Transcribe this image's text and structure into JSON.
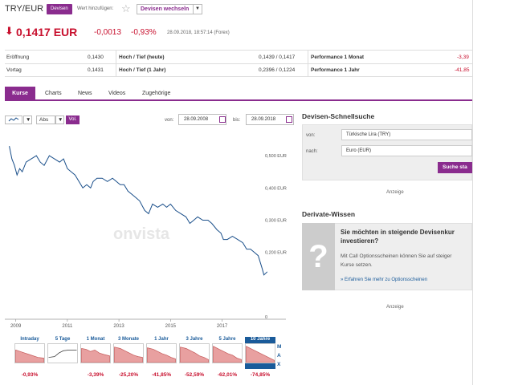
{
  "header": {
    "title": "TRY/EUR",
    "badge": "Devisen",
    "add_label": "Wert hinzufügen:",
    "switch_label": "Devisen wechseln"
  },
  "quote": {
    "price": "0,1417",
    "currency": "EUR",
    "change": "-0,0013",
    "change_pct": "-0,93%",
    "timestamp": "28.09.2018, 18:57:14 (Forex)"
  },
  "stats": {
    "row1": {
      "l1": "Eröffnung",
      "v1": "0,1430",
      "l2": "Hoch / Tief (heute)",
      "v2": "0,1439 / 0,1417",
      "l3": "Performance 1 Monat",
      "v3": "-3,39"
    },
    "row2": {
      "l1": "Vortag",
      "v1": "0,1431",
      "l2": "Hoch / Tief (1 Jahr)",
      "v2": "0,2396 / 0,1224",
      "l3": "Performance 1 Jahr",
      "v3": "-41,85"
    }
  },
  "tabs": [
    "Kurse",
    "Charts",
    "News",
    "Videos",
    "Zugehörige"
  ],
  "toolbar": {
    "scale": "Abs",
    "vol": "Vol.",
    "from_label": "von:",
    "from_date": "28.09.2008",
    "to_label": "bis:",
    "to_date": "28.09.2018"
  },
  "chart_data": {
    "type": "line",
    "watermark": "onvista",
    "x_ticks": [
      "2009",
      "2011",
      "2013",
      "2015",
      "2017"
    ],
    "y_ticks": [
      "0,500 EUR",
      "0,400 EUR",
      "0,300 EUR",
      "0,200 EUR",
      "0"
    ],
    "ylim": [
      0,
      0.56
    ],
    "series": [
      {
        "values": [
          [
            2008.75,
            0.53
          ],
          [
            2008.85,
            0.49
          ],
          [
            2008.95,
            0.47
          ],
          [
            2009.05,
            0.44
          ],
          [
            2009.15,
            0.46
          ],
          [
            2009.25,
            0.45
          ],
          [
            2009.4,
            0.48
          ],
          [
            2009.6,
            0.49
          ],
          [
            2009.8,
            0.5
          ],
          [
            2009.95,
            0.48
          ],
          [
            2010.1,
            0.47
          ],
          [
            2010.3,
            0.5
          ],
          [
            2010.5,
            0.49
          ],
          [
            2010.7,
            0.48
          ],
          [
            2010.85,
            0.49
          ],
          [
            2011.0,
            0.46
          ],
          [
            2011.15,
            0.45
          ],
          [
            2011.3,
            0.44
          ],
          [
            2011.45,
            0.42
          ],
          [
            2011.6,
            0.4
          ],
          [
            2011.75,
            0.41
          ],
          [
            2011.9,
            0.4
          ],
          [
            2012.0,
            0.42
          ],
          [
            2012.15,
            0.43
          ],
          [
            2012.35,
            0.43
          ],
          [
            2012.55,
            0.42
          ],
          [
            2012.75,
            0.43
          ],
          [
            2012.9,
            0.42
          ],
          [
            2013.05,
            0.41
          ],
          [
            2013.2,
            0.41
          ],
          [
            2013.35,
            0.39
          ],
          [
            2013.5,
            0.38
          ],
          [
            2013.65,
            0.37
          ],
          [
            2013.8,
            0.36
          ],
          [
            2014.0,
            0.33
          ],
          [
            2014.15,
            0.32
          ],
          [
            2014.3,
            0.35
          ],
          [
            2014.5,
            0.34
          ],
          [
            2014.7,
            0.35
          ],
          [
            2014.85,
            0.34
          ],
          [
            2015.0,
            0.35
          ],
          [
            2015.2,
            0.33
          ],
          [
            2015.4,
            0.32
          ],
          [
            2015.6,
            0.31
          ],
          [
            2015.75,
            0.29
          ],
          [
            2015.9,
            0.3
          ],
          [
            2016.05,
            0.31
          ],
          [
            2016.25,
            0.3
          ],
          [
            2016.45,
            0.3
          ],
          [
            2016.6,
            0.29
          ],
          [
            2016.8,
            0.27
          ],
          [
            2016.95,
            0.26
          ],
          [
            2017.05,
            0.24
          ],
          [
            2017.2,
            0.24
          ],
          [
            2017.4,
            0.25
          ],
          [
            2017.6,
            0.24
          ],
          [
            2017.8,
            0.23
          ],
          [
            2017.95,
            0.21
          ],
          [
            2018.1,
            0.21
          ],
          [
            2018.25,
            0.2
          ],
          [
            2018.4,
            0.19
          ],
          [
            2018.55,
            0.15
          ],
          [
            2018.62,
            0.13
          ],
          [
            2018.75,
            0.14
          ]
        ]
      }
    ],
    "periods": [
      {
        "label": "Intraday",
        "value": "-0,93%"
      },
      {
        "label": "5 Tage",
        "value": ""
      },
      {
        "label": "1 Monat",
        "value": "-3,39%"
      },
      {
        "label": "3 Monate",
        "value": "-25,20%"
      },
      {
        "label": "1 Jahr",
        "value": "-41,85%"
      },
      {
        "label": "3 Jahre",
        "value": "-52,59%"
      },
      {
        "label": "5 Jahre",
        "value": "-62,01%"
      },
      {
        "label": "10 Jahre",
        "value": "-74,85%"
      }
    ],
    "max_label": [
      "M",
      "A",
      "X"
    ]
  },
  "search": {
    "title": "Devisen-Schnellsuche",
    "from_label": "von:",
    "from_value": "Türkische Lira (TRY)",
    "to_label": "nach:",
    "to_value": "Euro (EUR)",
    "button": "Suche sta",
    "ad": "Anzeige"
  },
  "derivate": {
    "title": "Derivate-Wissen",
    "headline1": "Sie möchten in steigende Devisenkur",
    "headline2": "investieren?",
    "body1": "Mit Call Optionsscheinen können Sie auf steiger",
    "body2": "Kurse setzen.",
    "link": "» Erfahren Sie mehr zu Optionsscheinen",
    "ad": "Anzeige"
  },
  "colors": {
    "accent": "#8a2c8e",
    "negative": "#c8102e",
    "line": "#1a4f8a"
  }
}
